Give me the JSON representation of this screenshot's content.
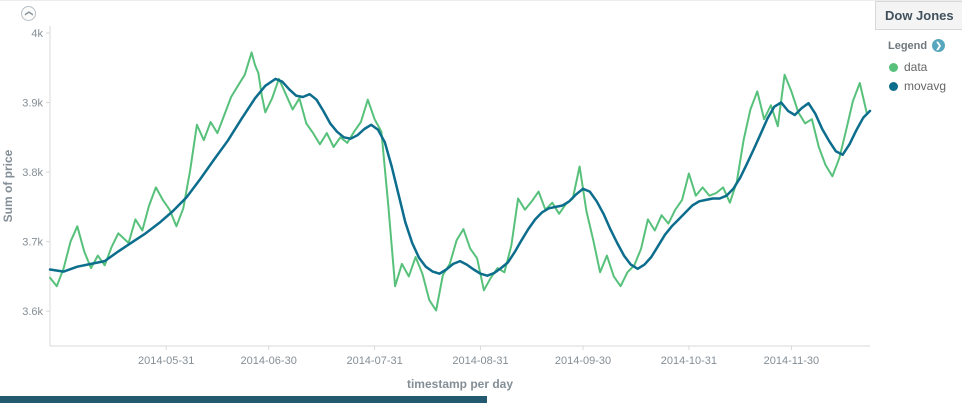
{
  "panel": {
    "title": "Dow Jones"
  },
  "legend": {
    "label": "Legend",
    "items": [
      {
        "name": "data",
        "color": "#57c17b"
      },
      {
        "name": "movavg",
        "color": "#0c6d8d"
      }
    ]
  },
  "chart_data": {
    "type": "line",
    "title": "Dow Jones",
    "xlabel": "timestamp per day",
    "ylabel": "Sum of price",
    "x_unit": "days since 2014-04-27",
    "xlim": [
      0,
      240
    ],
    "ylim": [
      3.55,
      4.01
    ],
    "grid": false,
    "legend_position": "right",
    "y_ticks": [
      {
        "v": 3.6,
        "label": "3.6k"
      },
      {
        "v": 3.7,
        "label": "3.7k"
      },
      {
        "v": 3.8,
        "label": "3.8k"
      },
      {
        "v": 3.9,
        "label": "3.9k"
      },
      {
        "v": 4.0,
        "label": "4k"
      }
    ],
    "x_ticks": [
      {
        "day": 34,
        "label": "2014-05-31"
      },
      {
        "day": 64,
        "label": "2014-06-30"
      },
      {
        "day": 95,
        "label": "2014-07-31"
      },
      {
        "day": 126,
        "label": "2014-08-31"
      },
      {
        "day": 156,
        "label": "2014-09-30"
      },
      {
        "day": 187,
        "label": "2014-10-31"
      },
      {
        "day": 217,
        "label": "2014-11-30"
      }
    ],
    "series": [
      {
        "name": "data",
        "color": "#57c17b",
        "width": 2,
        "points": [
          [
            0,
            3.648
          ],
          [
            2,
            3.636
          ],
          [
            4,
            3.662
          ],
          [
            6,
            3.7
          ],
          [
            8,
            3.722
          ],
          [
            10,
            3.686
          ],
          [
            12,
            3.662
          ],
          [
            14,
            3.68
          ],
          [
            16,
            3.666
          ],
          [
            18,
            3.692
          ],
          [
            20,
            3.712
          ],
          [
            23,
            3.698
          ],
          [
            25,
            3.732
          ],
          [
            27,
            3.716
          ],
          [
            29,
            3.752
          ],
          [
            31,
            3.778
          ],
          [
            33,
            3.76
          ],
          [
            35,
            3.746
          ],
          [
            37,
            3.722
          ],
          [
            39,
            3.748
          ],
          [
            41,
            3.802
          ],
          [
            43,
            3.868
          ],
          [
            45,
            3.846
          ],
          [
            47,
            3.872
          ],
          [
            49,
            3.856
          ],
          [
            51,
            3.882
          ],
          [
            53,
            3.908
          ],
          [
            55,
            3.924
          ],
          [
            57,
            3.94
          ],
          [
            59,
            3.972
          ],
          [
            60,
            3.954
          ],
          [
            61,
            3.942
          ],
          [
            62,
            3.91
          ],
          [
            63,
            3.886
          ],
          [
            65,
            3.906
          ],
          [
            67,
            3.934
          ],
          [
            69,
            3.912
          ],
          [
            71,
            3.89
          ],
          [
            73,
            3.906
          ],
          [
            75,
            3.87
          ],
          [
            77,
            3.856
          ],
          [
            79,
            3.84
          ],
          [
            81,
            3.856
          ],
          [
            83,
            3.836
          ],
          [
            85,
            3.85
          ],
          [
            87,
            3.842
          ],
          [
            89,
            3.858
          ],
          [
            91,
            3.872
          ],
          [
            93,
            3.904
          ],
          [
            95,
            3.876
          ],
          [
            97,
            3.858
          ],
          [
            99,
            3.752
          ],
          [
            101,
            3.636
          ],
          [
            103,
            3.668
          ],
          [
            105,
            3.65
          ],
          [
            107,
            3.678
          ],
          [
            109,
            3.654
          ],
          [
            111,
            3.616
          ],
          [
            113,
            3.601
          ],
          [
            115,
            3.652
          ],
          [
            117,
            3.668
          ],
          [
            119,
            3.702
          ],
          [
            121,
            3.718
          ],
          [
            123,
            3.69
          ],
          [
            125,
            3.676
          ],
          [
            127,
            3.63
          ],
          [
            129,
            3.648
          ],
          [
            131,
            3.662
          ],
          [
            133,
            3.656
          ],
          [
            135,
            3.694
          ],
          [
            137,
            3.762
          ],
          [
            139,
            3.746
          ],
          [
            141,
            3.758
          ],
          [
            143,
            3.772
          ],
          [
            145,
            3.746
          ],
          [
            147,
            3.756
          ],
          [
            149,
            3.74
          ],
          [
            151,
            3.754
          ],
          [
            153,
            3.762
          ],
          [
            155,
            3.808
          ],
          [
            157,
            3.744
          ],
          [
            159,
            3.702
          ],
          [
            161,
            3.656
          ],
          [
            163,
            3.68
          ],
          [
            165,
            3.65
          ],
          [
            167,
            3.636
          ],
          [
            169,
            3.656
          ],
          [
            171,
            3.666
          ],
          [
            173,
            3.69
          ],
          [
            175,
            3.732
          ],
          [
            177,
            3.716
          ],
          [
            179,
            3.738
          ],
          [
            181,
            3.726
          ],
          [
            183,
            3.746
          ],
          [
            185,
            3.76
          ],
          [
            187,
            3.798
          ],
          [
            189,
            3.766
          ],
          [
            191,
            3.778
          ],
          [
            193,
            3.766
          ],
          [
            195,
            3.77
          ],
          [
            197,
            3.778
          ],
          [
            199,
            3.756
          ],
          [
            201,
            3.786
          ],
          [
            203,
            3.846
          ],
          [
            205,
            3.89
          ],
          [
            207,
            3.916
          ],
          [
            209,
            3.876
          ],
          [
            211,
            3.896
          ],
          [
            213,
            3.866
          ],
          [
            215,
            3.94
          ],
          [
            217,
            3.916
          ],
          [
            219,
            3.886
          ],
          [
            221,
            3.87
          ],
          [
            223,
            3.876
          ],
          [
            225,
            3.836
          ],
          [
            227,
            3.81
          ],
          [
            229,
            3.794
          ],
          [
            231,
            3.82
          ],
          [
            233,
            3.86
          ],
          [
            235,
            3.902
          ],
          [
            237,
            3.928
          ],
          [
            239,
            3.886
          ]
        ]
      },
      {
        "name": "movavg",
        "color": "#0c6d8d",
        "width": 2.5,
        "points": [
          [
            0,
            3.66
          ],
          [
            4,
            3.657
          ],
          [
            8,
            3.664
          ],
          [
            12,
            3.668
          ],
          [
            16,
            3.672
          ],
          [
            20,
            3.686
          ],
          [
            24,
            3.699
          ],
          [
            28,
            3.712
          ],
          [
            32,
            3.727
          ],
          [
            36,
            3.744
          ],
          [
            40,
            3.764
          ],
          [
            44,
            3.79
          ],
          [
            48,
            3.818
          ],
          [
            52,
            3.845
          ],
          [
            56,
            3.876
          ],
          [
            60,
            3.906
          ],
          [
            63,
            3.924
          ],
          [
            66,
            3.934
          ],
          [
            68,
            3.93
          ],
          [
            70,
            3.919
          ],
          [
            72,
            3.91
          ],
          [
            74,
            3.908
          ],
          [
            76,
            3.912
          ],
          [
            78,
            3.904
          ],
          [
            80,
            3.888
          ],
          [
            82,
            3.87
          ],
          [
            84,
            3.858
          ],
          [
            86,
            3.85
          ],
          [
            88,
            3.848
          ],
          [
            90,
            3.853
          ],
          [
            92,
            3.862
          ],
          [
            94,
            3.868
          ],
          [
            96,
            3.861
          ],
          [
            98,
            3.843
          ],
          [
            100,
            3.808
          ],
          [
            102,
            3.768
          ],
          [
            104,
            3.728
          ],
          [
            106,
            3.698
          ],
          [
            108,
            3.677
          ],
          [
            110,
            3.664
          ],
          [
            112,
            3.657
          ],
          [
            114,
            3.654
          ],
          [
            116,
            3.66
          ],
          [
            118,
            3.668
          ],
          [
            120,
            3.672
          ],
          [
            122,
            3.667
          ],
          [
            124,
            3.66
          ],
          [
            126,
            3.654
          ],
          [
            128,
            3.651
          ],
          [
            130,
            3.655
          ],
          [
            132,
            3.662
          ],
          [
            134,
            3.67
          ],
          [
            136,
            3.685
          ],
          [
            138,
            3.702
          ],
          [
            140,
            3.718
          ],
          [
            142,
            3.732
          ],
          [
            144,
            3.742
          ],
          [
            146,
            3.748
          ],
          [
            148,
            3.75
          ],
          [
            150,
            3.752
          ],
          [
            152,
            3.758
          ],
          [
            154,
            3.768
          ],
          [
            156,
            3.776
          ],
          [
            158,
            3.772
          ],
          [
            160,
            3.758
          ],
          [
            162,
            3.74
          ],
          [
            164,
            3.718
          ],
          [
            166,
            3.698
          ],
          [
            168,
            3.68
          ],
          [
            170,
            3.667
          ],
          [
            172,
            3.661
          ],
          [
            174,
            3.667
          ],
          [
            176,
            3.678
          ],
          [
            178,
            3.694
          ],
          [
            180,
            3.71
          ],
          [
            182,
            3.722
          ],
          [
            184,
            3.732
          ],
          [
            186,
            3.742
          ],
          [
            188,
            3.752
          ],
          [
            190,
            3.758
          ],
          [
            192,
            3.76
          ],
          [
            194,
            3.762
          ],
          [
            196,
            3.762
          ],
          [
            198,
            3.766
          ],
          [
            200,
            3.776
          ],
          [
            202,
            3.792
          ],
          [
            204,
            3.812
          ],
          [
            206,
            3.833
          ],
          [
            208,
            3.855
          ],
          [
            210,
            3.877
          ],
          [
            212,
            3.894
          ],
          [
            214,
            3.9
          ],
          [
            216,
            3.888
          ],
          [
            218,
            3.882
          ],
          [
            220,
            3.892
          ],
          [
            222,
            3.899
          ],
          [
            224,
            3.884
          ],
          [
            226,
            3.862
          ],
          [
            228,
            3.845
          ],
          [
            230,
            3.83
          ],
          [
            232,
            3.825
          ],
          [
            234,
            3.84
          ],
          [
            236,
            3.86
          ],
          [
            238,
            3.878
          ],
          [
            240,
            3.888
          ]
        ]
      }
    ]
  }
}
